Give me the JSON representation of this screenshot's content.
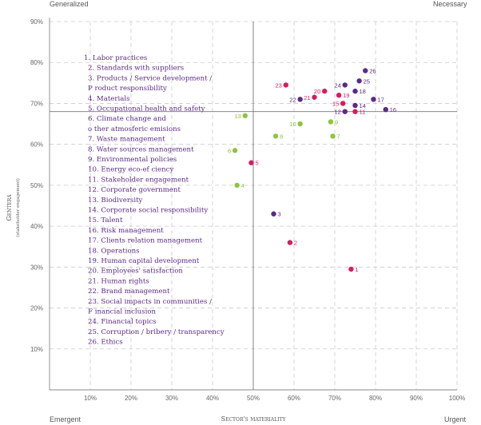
{
  "corners": {
    "top_left": "Generalized",
    "top_right": "Necessary",
    "bottom_left": "Emergent",
    "bottom_right": "Urgent"
  },
  "colors": {
    "purple": "#5b2a86",
    "pink": "#d81b60",
    "green": "#8cc63f",
    "axis": "#888888",
    "grid": "#cccccc",
    "label": "#5b2a86"
  },
  "chart_data": {
    "type": "scatter",
    "xlabel": "Sector's materiality",
    "ylabel": "Gentera",
    "ylabel_sub": "(stakeholder engagement)",
    "xlim": [
      0,
      100
    ],
    "ylim": [
      0,
      90
    ],
    "x_ticks": [
      "10%",
      "20%",
      "30%",
      "40%",
      "50%",
      "60%",
      "70%",
      "80%",
      "90%",
      "100%"
    ],
    "y_ticks": [
      "10%",
      "20%",
      "30%",
      "40%",
      "50%",
      "60%",
      "70%",
      "80%",
      "90%"
    ],
    "threshold_x": 50,
    "threshold_y": 68,
    "grid": true,
    "points": [
      {
        "id": "1",
        "x": 74,
        "y": 29.5,
        "color": "pink"
      },
      {
        "id": "2",
        "x": 59,
        "y": 36,
        "color": "pink"
      },
      {
        "id": "3",
        "x": 55,
        "y": 43,
        "color": "purple"
      },
      {
        "id": "4",
        "x": 46,
        "y": 50,
        "color": "green"
      },
      {
        "id": "5",
        "x": 49.5,
        "y": 55.5,
        "color": "pink"
      },
      {
        "id": "6",
        "x": 45.5,
        "y": 58.5,
        "color": "green"
      },
      {
        "id": "7",
        "x": 69.5,
        "y": 62,
        "color": "green"
      },
      {
        "id": "8",
        "x": 55.5,
        "y": 62,
        "color": "green"
      },
      {
        "id": "9",
        "x": 69,
        "y": 65.5,
        "color": "green"
      },
      {
        "id": "10",
        "x": 61.5,
        "y": 65,
        "color": "green"
      },
      {
        "id": "11",
        "x": 75,
        "y": 68,
        "color": "pink"
      },
      {
        "id": "12",
        "x": 72.5,
        "y": 68,
        "color": "purple"
      },
      {
        "id": "13",
        "x": 48,
        "y": 67,
        "color": "green"
      },
      {
        "id": "14",
        "x": 75,
        "y": 69.5,
        "color": "purple"
      },
      {
        "id": "15",
        "x": 72,
        "y": 70,
        "color": "pink"
      },
      {
        "id": "16",
        "x": 82.5,
        "y": 68.5,
        "color": "purple"
      },
      {
        "id": "17",
        "x": 79.5,
        "y": 71,
        "color": "purple"
      },
      {
        "id": "18",
        "x": 75,
        "y": 73,
        "color": "purple"
      },
      {
        "id": "19",
        "x": 71,
        "y": 72,
        "color": "pink"
      },
      {
        "id": "20",
        "x": 67.5,
        "y": 73,
        "color": "pink"
      },
      {
        "id": "21",
        "x": 65,
        "y": 71.5,
        "color": "pink"
      },
      {
        "id": "22",
        "x": 61.5,
        "y": 71,
        "color": "purple"
      },
      {
        "id": "23",
        "x": 58,
        "y": 74.5,
        "color": "pink"
      },
      {
        "id": "24",
        "x": 72.5,
        "y": 74.5,
        "color": "purple"
      },
      {
        "id": "25",
        "x": 76,
        "y": 75.5,
        "color": "purple"
      },
      {
        "id": "26",
        "x": 77.5,
        "y": 78,
        "color": "purple"
      }
    ],
    "legend": [
      [
        "1. Labor practices"
      ],
      [
        "2.  Standards with suppliers"
      ],
      [
        "3.  Products / Service development /",
        "P  roduct responsibility"
      ],
      [
        "4.  Materials"
      ],
      [
        "5.  Occupational health and safety"
      ],
      [
        "6.  Climate change and",
        "o  ther atmosferic emisions"
      ],
      [
        "7.  Waste management"
      ],
      [
        "8.  Water sources management"
      ],
      [
        "9.  Environmental policies"
      ],
      [
        "10. Energy eco-ef ciency"
      ],
      [
        "11. Stakeholder engagement"
      ],
      [
        "12. Corporate government"
      ],
      [
        "13. Biodiversity"
      ],
      [
        "14. Corporate social responsibility"
      ],
      [
        "15. Talent"
      ],
      [
        "16. Risk management"
      ],
      [
        "17. Clients relation management"
      ],
      [
        "18. Operations"
      ],
      [
        "19. Human capital development"
      ],
      [
        "20. Employees' satisfaction"
      ],
      [
        "21. Human rights"
      ],
      [
        "22. Brand management"
      ],
      [
        "23. Social impacts in communities /",
        "F  inancial inclusion"
      ],
      [
        "24. Financial topics"
      ],
      [
        "25. Corruption / bribery / transparency"
      ],
      [
        "26. Ethics"
      ]
    ]
  }
}
